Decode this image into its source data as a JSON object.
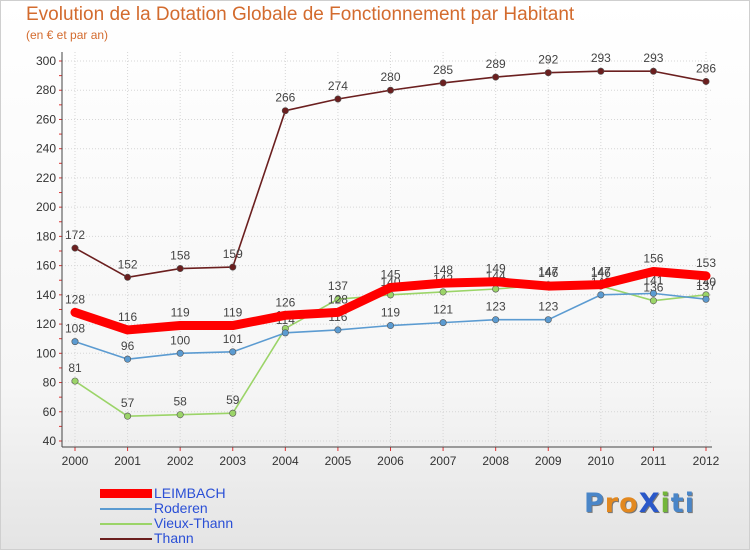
{
  "header": {
    "title": "Evolution de la Dotation Globale de Fonctionnement par Habitant",
    "subtitle": "(en € et par an)"
  },
  "logo": {
    "text": "ProXiti",
    "letters": [
      "P",
      "r",
      "o",
      "X",
      "i",
      "t",
      "i"
    ],
    "colors": [
      "#4a86c8",
      "#e2881f",
      "#e2881f",
      "#2a58c9",
      "#73b63a",
      "#4a86c8",
      "#4a86c8"
    ]
  },
  "chart_data": {
    "type": "line",
    "title": "Evolution de la Dotation Globale de Fonctionnement par Habitant",
    "subtitle": "(en € et par an)",
    "x": [
      "2000",
      "2001",
      "2002",
      "2003",
      "2004",
      "2005",
      "2006",
      "2007",
      "2008",
      "2009",
      "2010",
      "2011",
      "2012"
    ],
    "ylim": [
      40,
      300
    ],
    "yticks": [
      40,
      60,
      80,
      100,
      120,
      140,
      160,
      180,
      200,
      220,
      240,
      260,
      280,
      300
    ],
    "grid": true,
    "legend_position": "bottom-left",
    "series": [
      {
        "name": "Thann",
        "color": "#6b1f1f",
        "values": [
          172,
          152,
          158,
          159,
          266,
          274,
          280,
          285,
          289,
          292,
          293,
          293,
          286
        ],
        "labels": [
          "172",
          "152",
          "158",
          "159",
          "266",
          "274",
          "280",
          "285",
          "289",
          "292",
          "293",
          "293",
          "286"
        ]
      },
      {
        "name": "Vieux-Thann",
        "color": "#9bd468",
        "values": [
          81,
          57,
          58,
          59,
          117,
          137,
          140,
          142,
          144,
          147,
          146,
          136,
          140
        ],
        "labels": [
          "81",
          "57",
          "58",
          "59",
          "117",
          "137",
          "140",
          "142",
          "144",
          "147",
          "146",
          "136",
          "140"
        ]
      },
      {
        "name": "Roderen",
        "color": "#5b9bd1",
        "values": [
          108,
          96,
          100,
          101,
          114,
          116,
          119,
          121,
          123,
          123,
          140,
          141,
          137
        ],
        "labels": [
          "108",
          "96",
          "100",
          "101",
          "114",
          "116",
          "119",
          "121",
          "123",
          "123",
          "140",
          "141",
          "137"
        ]
      },
      {
        "name": "LEIMBACH",
        "color": "#ff0000",
        "values": [
          128,
          116,
          119,
          119,
          126,
          128,
          145,
          148,
          149,
          146,
          147,
          156,
          153
        ],
        "labels": [
          "128",
          "116",
          "119",
          "119",
          "126",
          "128",
          "145",
          "148",
          "149",
          "146",
          "147",
          "156",
          "153"
        ]
      }
    ],
    "legend_order": [
      "LEIMBACH",
      "Roderen",
      "Vieux-Thann",
      "Thann"
    ]
  }
}
